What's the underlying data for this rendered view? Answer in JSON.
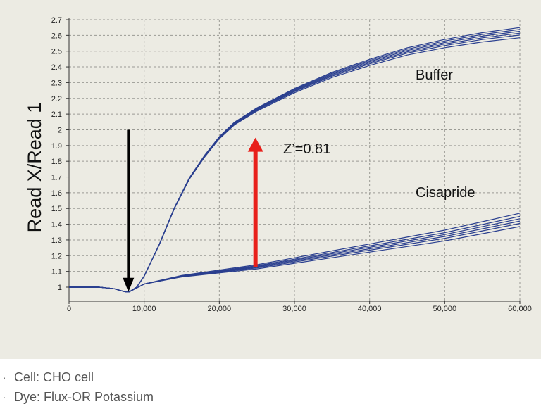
{
  "chart_data": {
    "type": "line",
    "title": "",
    "xlabel": "",
    "ylabel": "Read X/Read 1",
    "xlim": [
      0,
      60000
    ],
    "ylim": [
      0.9,
      2.7
    ],
    "x_ticks": [
      0,
      10000,
      20000,
      30000,
      40000,
      50000,
      60000
    ],
    "x_tick_labels": [
      "0",
      "10,000",
      "20,000",
      "30,000",
      "40,000",
      "50,000",
      "60,000"
    ],
    "y_ticks": [
      1,
      1.1,
      1.2,
      1.3,
      1.4,
      1.5,
      1.6,
      1.7,
      1.8,
      1.9,
      2,
      2.1,
      2.2,
      2.3,
      2.4,
      2.5,
      2.6,
      2.7
    ],
    "y_tick_labels": [
      "1",
      "1.1",
      "1.2",
      "1.3",
      "1.4",
      "1.5",
      "1.6",
      "1.7",
      "1.8",
      "1.9",
      "2",
      "2.1",
      "2.2",
      "2.3",
      "2.4",
      "2.5",
      "2.6",
      "2.7"
    ],
    "grid": true,
    "line_color": "#2a3f8f",
    "series": [
      {
        "name": "Buffer",
        "x": [
          0,
          2000,
          4000,
          6000,
          7500,
          8000,
          9000,
          10000,
          12000,
          14000,
          16000,
          18000,
          20000,
          22000,
          25000,
          30000,
          35000,
          40000,
          45000,
          50000,
          55000,
          60000
        ],
        "values": [
          1.0,
          1.0,
          1.0,
          0.99,
          0.97,
          0.97,
          1.0,
          1.07,
          1.27,
          1.5,
          1.69,
          1.83,
          1.95,
          2.04,
          2.13,
          2.25,
          2.35,
          2.43,
          2.5,
          2.55,
          2.59,
          2.62
        ],
        "label": "Buffer"
      },
      {
        "name": "Cisapride",
        "x": [
          0,
          2000,
          4000,
          6000,
          7500,
          8000,
          10000,
          15000,
          20000,
          25000,
          30000,
          35000,
          40000,
          45000,
          50000,
          55000,
          60000
        ],
        "values": [
          1.0,
          1.0,
          1.0,
          0.99,
          0.97,
          0.97,
          1.02,
          1.07,
          1.1,
          1.13,
          1.17,
          1.21,
          1.25,
          1.29,
          1.33,
          1.38,
          1.43
        ],
        "label": "Cisapride"
      }
    ],
    "annotations": {
      "stimulus_arrow": {
        "x": 8000,
        "y_from": 2.0,
        "y_to": 0.97,
        "color": "#000000"
      },
      "window_arrow": {
        "x": 25000,
        "y_from": 1.13,
        "y_to": 1.95,
        "color": "#e8201b"
      },
      "z_prime_label": "Z’=0.81"
    }
  },
  "notes": [
    {
      "bullet": "·",
      "text": "Cell: CHO cell"
    },
    {
      "bullet": "·",
      "text": "Dye: Flux-OR Potassium"
    }
  ]
}
